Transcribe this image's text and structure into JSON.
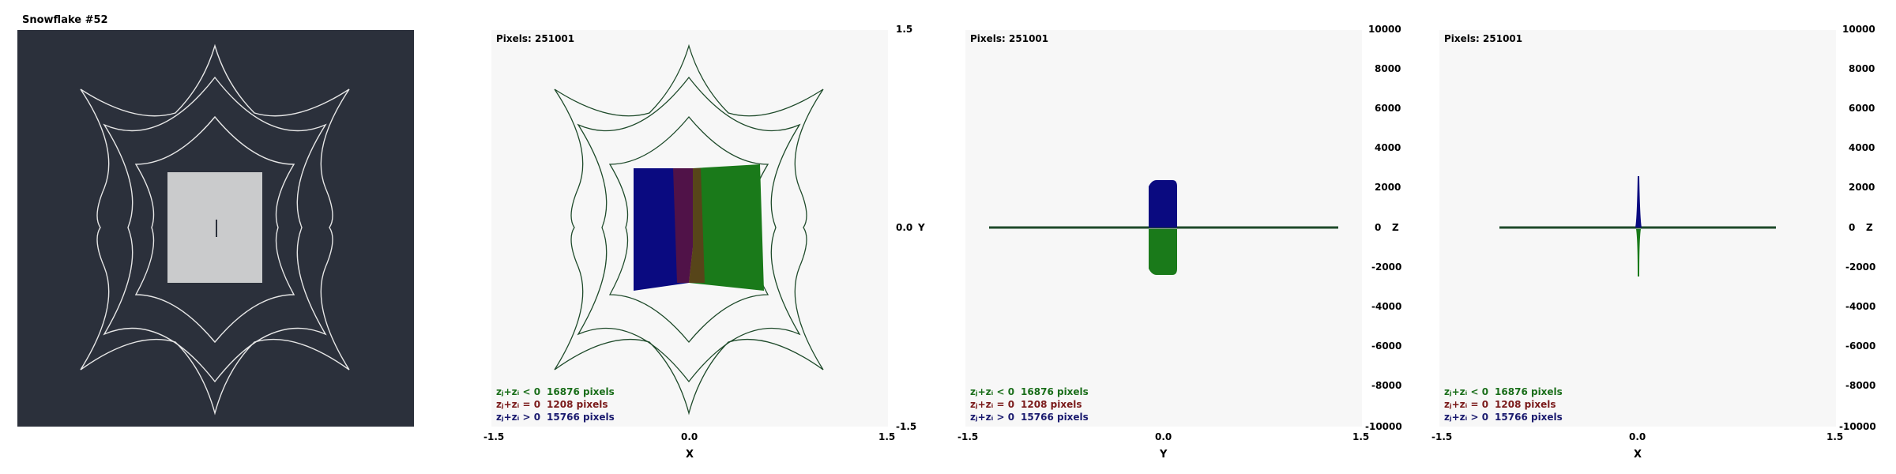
{
  "window_title": "Snowflake #52",
  "pixels_label": "Pixels: 251001",
  "legend": [
    {
      "label": "zⱼ+zᵢ < 0",
      "count": "16876 pixels",
      "color": "#1a6e1a"
    },
    {
      "label": "zⱼ+zᵢ = 0",
      "count": "1208 pixels",
      "color": "#7a1a1a"
    },
    {
      "label": "zⱼ+zᵢ > 0",
      "count": "15766 pixels",
      "color": "#1a1a6e"
    }
  ],
  "x_ticks": [
    "-1.5",
    "0.0",
    "1.5"
  ],
  "xy_right_ticks": [
    "1.5",
    "0.0",
    "Y",
    "-1.5"
  ],
  "z_ticks": [
    "10000",
    "8000",
    "6000",
    "4000",
    "2000",
    "0",
    "-2000",
    "-4000",
    "-6000",
    "-8000",
    "-10000"
  ],
  "z_label": "Z",
  "axis_titles": {
    "panel1": "X",
    "panel2": "Y",
    "panel3": "X"
  },
  "colors": {
    "dark_bg": "#2b303b",
    "plot_bg": "#f7f7f7",
    "green": "#1a7a1a",
    "blue": "#0a0a80",
    "red": "#8a1a1a"
  }
}
